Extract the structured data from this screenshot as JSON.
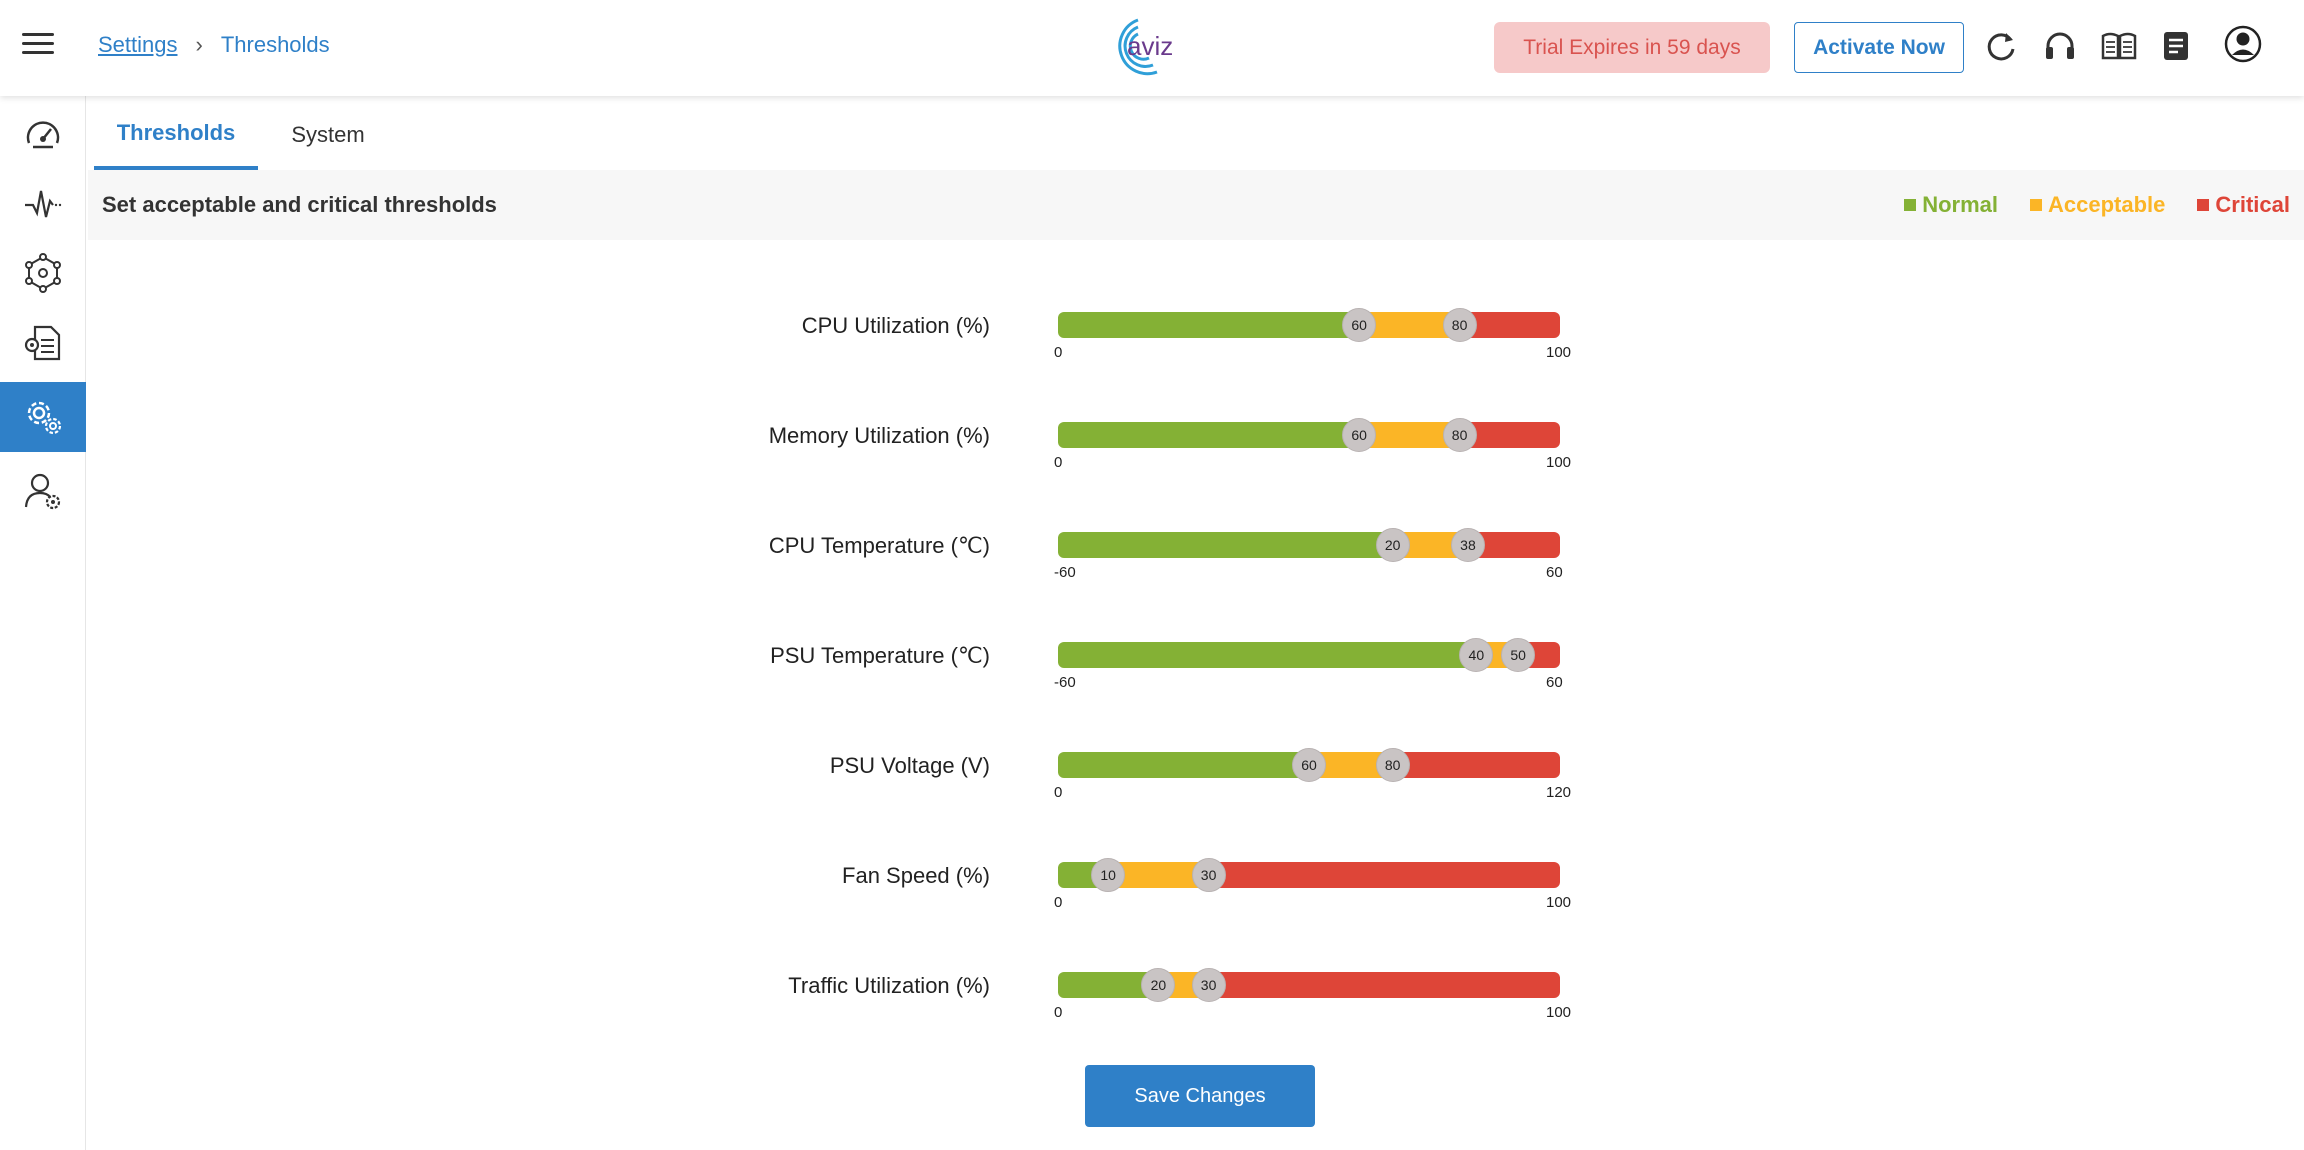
{
  "header": {
    "breadcrumb": {
      "parent": "Settings",
      "separator": "›",
      "current": "Thresholds"
    },
    "logo_text": "aviz",
    "trial_text": "Trial Expires in 59 days",
    "activate_label": "Activate Now",
    "icons": [
      "refresh-icon",
      "headset-icon",
      "book-icon",
      "notes-icon",
      "account-icon"
    ]
  },
  "sidebar": {
    "items": [
      {
        "icon": "dashboard-icon",
        "active": false
      },
      {
        "icon": "pulse-icon",
        "active": false
      },
      {
        "icon": "network-icon",
        "active": false
      },
      {
        "icon": "config-file-icon",
        "active": false
      },
      {
        "icon": "settings-gears-icon",
        "active": true
      },
      {
        "icon": "user-settings-icon",
        "active": false
      }
    ]
  },
  "tabs": [
    {
      "label": "Thresholds",
      "active": true
    },
    {
      "label": "System",
      "active": false
    }
  ],
  "infobar": {
    "text": "Set acceptable and critical thresholds",
    "legend": [
      {
        "label": "Normal",
        "color": "#84b135"
      },
      {
        "label": "Acceptable",
        "color": "#fbb526"
      },
      {
        "label": "Critical",
        "color": "#de4538"
      }
    ]
  },
  "colors": {
    "accent": "#2f80c8",
    "normal": "#84b135",
    "acceptable": "#fbb526",
    "critical": "#de4538"
  },
  "thresholds": [
    {
      "label": "CPU Utilization (%)",
      "min": 0,
      "max": 100,
      "acceptable": 60,
      "critical": 80
    },
    {
      "label": "Memory Utilization (%)",
      "min": 0,
      "max": 100,
      "acceptable": 60,
      "critical": 80
    },
    {
      "label": "CPU Temperature (℃)",
      "min": -60,
      "max": 60,
      "acceptable": 20,
      "critical": 38
    },
    {
      "label": "PSU Temperature (℃)",
      "min": -60,
      "max": 60,
      "acceptable": 40,
      "critical": 50
    },
    {
      "label": "PSU Voltage (V)",
      "min": 0,
      "max": 120,
      "acceptable": 60,
      "critical": 80
    },
    {
      "label": "Fan Speed (%)",
      "min": 0,
      "max": 100,
      "acceptable": 10,
      "critical": 30
    },
    {
      "label": "Traffic Utilization (%)",
      "min": 0,
      "max": 100,
      "acceptable": 20,
      "critical": 30
    }
  ],
  "save_label": "Save Changes"
}
